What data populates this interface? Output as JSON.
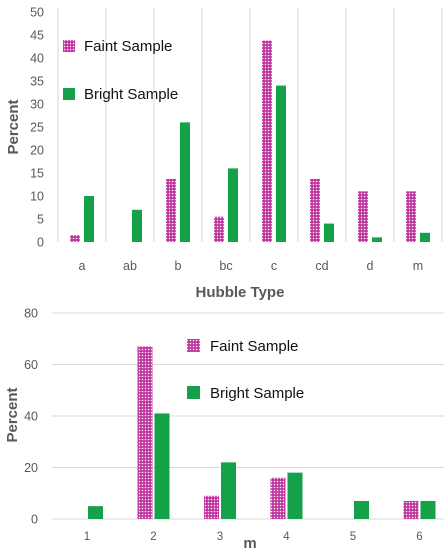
{
  "colors": {
    "faint": "#c0359f",
    "bright": "#15a04a",
    "grid": "#d9d9d9",
    "text": "#595959"
  },
  "chart_data": [
    {
      "type": "bar",
      "title": "",
      "xlabel": "Hubble Type",
      "ylabel": "Percent",
      "ylim": [
        0,
        50
      ],
      "yticks": [
        0,
        5,
        10,
        15,
        20,
        25,
        30,
        35,
        40,
        45,
        50
      ],
      "grid": "vertical",
      "legend_position": "top-left",
      "categories": [
        "a",
        "ab",
        "b",
        "bc",
        "c",
        "cd",
        "d",
        "m"
      ],
      "series": [
        {
          "name": "Faint Sample",
          "values": [
            1.5,
            0,
            13.7,
            5.5,
            43.8,
            13.7,
            11,
            11
          ],
          "pattern": "dotted",
          "color": "#c0359f"
        },
        {
          "name": "Bright Sample",
          "values": [
            10,
            7,
            26,
            16,
            34,
            4,
            1,
            2
          ],
          "pattern": "solid",
          "color": "#15a04a"
        }
      ]
    },
    {
      "type": "bar",
      "title": "",
      "xlabel": "m",
      "ylabel": "Percent",
      "ylim": [
        0,
        80
      ],
      "yticks": [
        0,
        20,
        40,
        60,
        80
      ],
      "grid": "horizontal",
      "legend_position": "top-center",
      "categories": [
        "1",
        "2",
        "3",
        "4",
        "5",
        "6"
      ],
      "series": [
        {
          "name": "Faint Sample",
          "values": [
            0,
            67,
            9,
            16,
            0,
            7
          ],
          "pattern": "dotted",
          "color": "#c0359f"
        },
        {
          "name": "Bright Sample",
          "values": [
            5,
            41,
            22,
            18,
            7,
            7
          ],
          "pattern": "solid",
          "color": "#15a04a"
        }
      ]
    }
  ]
}
